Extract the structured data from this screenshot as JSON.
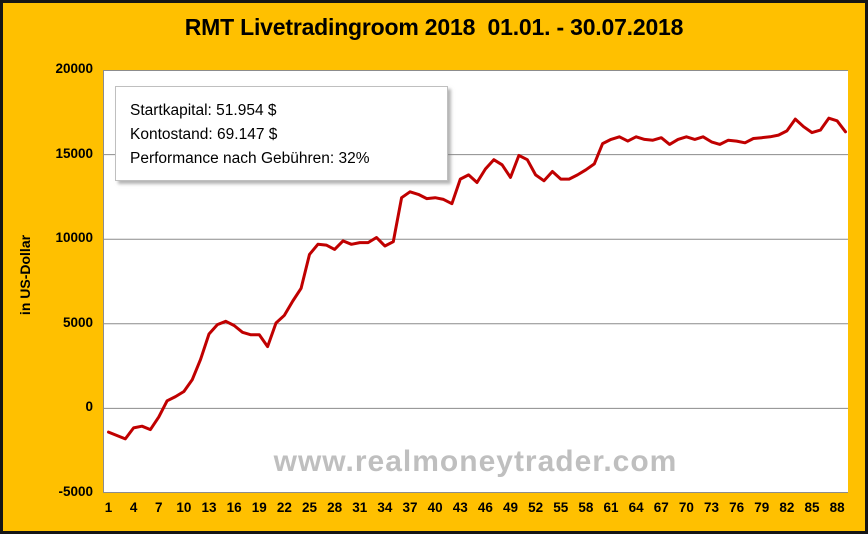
{
  "title": "RMT Livetradingroom 2018  01.01. - 30.07.2018",
  "watermark": "www.realmoneytrader.com",
  "info_box": {
    "lines": [
      "Startkapital: 51.954 $",
      "Kontostand: 69.147 $",
      "Performance nach Gebühren: 32%"
    ]
  },
  "colors": {
    "background": "#FFC000",
    "plot_background": "#FFFFFF",
    "line": "#C00000",
    "grid": "#8C8C8C",
    "watermark": "#BFBFBF",
    "frame_border": "#151515",
    "text": "#000000"
  },
  "chart_data": {
    "type": "line",
    "title": "RMT Livetradingroom 2018  01.01. - 30.07.2018",
    "xlabel": "",
    "ylabel": "in US-Dollar",
    "ylim": [
      -5000,
      20000
    ],
    "yticks": [
      20000,
      15000,
      10000,
      5000,
      0,
      -5000
    ],
    "xticks": [
      1,
      4,
      7,
      10,
      13,
      16,
      19,
      22,
      25,
      28,
      31,
      34,
      37,
      40,
      43,
      46,
      49,
      52,
      55,
      58,
      61,
      64,
      67,
      70,
      73,
      76,
      79,
      82,
      85,
      88
    ],
    "grid": true,
    "legend": "none",
    "x": [
      1,
      2,
      3,
      4,
      5,
      6,
      7,
      8,
      9,
      10,
      11,
      12,
      13,
      14,
      15,
      16,
      17,
      18,
      19,
      20,
      21,
      22,
      23,
      24,
      25,
      26,
      27,
      28,
      29,
      30,
      31,
      32,
      33,
      34,
      35,
      36,
      37,
      38,
      39,
      40,
      41,
      42,
      43,
      44,
      45,
      46,
      47,
      48,
      49,
      50,
      51,
      52,
      53,
      54,
      55,
      56,
      57,
      58,
      59,
      60,
      61,
      62,
      63,
      64,
      65,
      66,
      67,
      68,
      69,
      70,
      71,
      72,
      73,
      74,
      75,
      76,
      77,
      78,
      79,
      80,
      81,
      82,
      83,
      84,
      85,
      86,
      87,
      88,
      89
    ],
    "values": [
      -1400,
      -1600,
      -1800,
      -1150,
      -1050,
      -1250,
      -500,
      450,
      700,
      1000,
      1700,
      2900,
      4400,
      4950,
      5150,
      4900,
      4500,
      4350,
      4350,
      3650,
      5050,
      5500,
      6350,
      7100,
      9100,
      9700,
      9650,
      9400,
      9900,
      9700,
      9800,
      9800,
      10100,
      9600,
      9850,
      12450,
      12800,
      12650,
      12400,
      12450,
      12350,
      12100,
      13550,
      13800,
      13350,
      14150,
      14700,
      14400,
      13650,
      14950,
      14700,
      13800,
      13450,
      14000,
      13550,
      13550,
      13800,
      14100,
      14450,
      15650,
      15900,
      16050,
      15800,
      16050,
      15900,
      15850,
      16000,
      15600,
      15900,
      16050,
      15900,
      16050,
      15750,
      15600,
      15850,
      15800,
      15700,
      15950,
      16000,
      16050,
      16150,
      16400,
      17100,
      16650,
      16300,
      16450,
      17150,
      17000,
      16350
    ]
  }
}
